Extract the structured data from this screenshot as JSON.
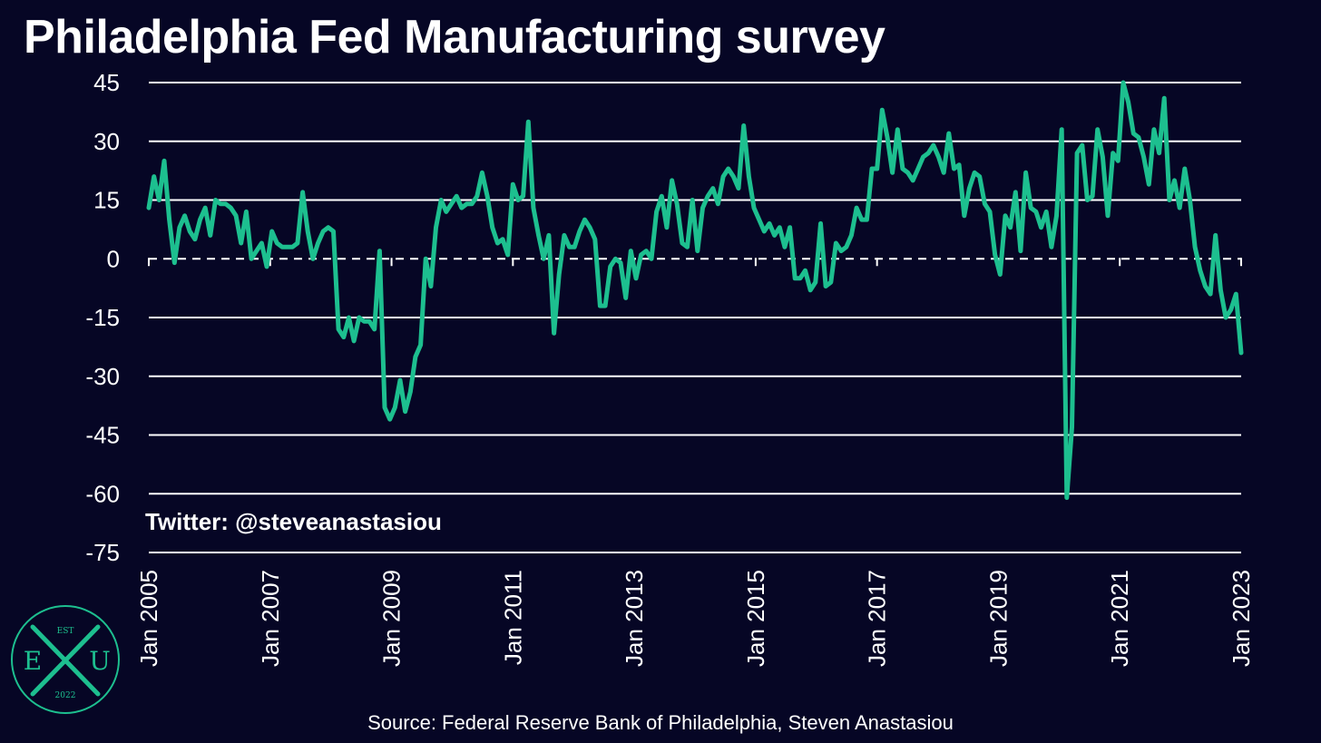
{
  "title": "Philadelphia Fed Manufacturing survey",
  "watermark": "Twitter: @steveanastasiou",
  "source": "Source: Federal Reserve Bank of Philadelphia, Steven Anastasiou",
  "logo": {
    "top": "EST",
    "left": "E",
    "right": "U",
    "bottom": "2022",
    "color": "#1dbf8f"
  },
  "colors": {
    "background": "#060625",
    "line": "#1dbf8f",
    "grid": "#ffffff",
    "text": "#ffffff"
  },
  "chart_data": {
    "type": "line",
    "title": "Philadelphia Fed Manufacturing survey",
    "xlabel": "",
    "ylabel": "",
    "x_start": "2005-01",
    "x_end": "2023-01",
    "x_ticks": [
      "Jan 2005",
      "Jan 2007",
      "Jan 2009",
      "Jan 2011",
      "Jan 2013",
      "Jan 2015",
      "Jan 2017",
      "Jan 2019",
      "Jan 2021",
      "Jan 2023"
    ],
    "y_ticks": [
      45,
      30,
      15,
      0,
      -15,
      -30,
      -45,
      -60,
      -75
    ],
    "ylim": [
      -75,
      45
    ],
    "zero_line": "dashed",
    "grid": true,
    "series": [
      {
        "color": "#1dbf8f",
        "values": [
          13,
          21,
          15,
          25,
          10,
          -1,
          8,
          11,
          7,
          5,
          10,
          13,
          6,
          15,
          14,
          14,
          13,
          11,
          4,
          12,
          0,
          2,
          4,
          -2,
          7,
          4,
          3,
          3,
          3,
          4,
          17,
          7,
          0,
          4,
          7,
          8,
          7,
          -18,
          -20,
          -15,
          -21,
          -15,
          -16,
          -16,
          -18,
          2,
          -38,
          -41,
          -38,
          -31,
          -39,
          -34,
          -25,
          -22,
          0,
          -7,
          8,
          15,
          12,
          14,
          16,
          13,
          14,
          14,
          16,
          22,
          16,
          8,
          4,
          5,
          1,
          19,
          15,
          16,
          35,
          13,
          6,
          0,
          6,
          -19,
          -4,
          6,
          3,
          3,
          7,
          10,
          8,
          5,
          -12,
          -12,
          -2,
          0,
          -1,
          -10,
          2,
          -5,
          1,
          2,
          0,
          12,
          16,
          8,
          20,
          14,
          4,
          3,
          15,
          2,
          13,
          16,
          18,
          14,
          21,
          23,
          21,
          18,
          34,
          21,
          13,
          10,
          7,
          9,
          6,
          8,
          3,
          8,
          -5,
          -5,
          -3,
          -8,
          -6,
          9,
          -7,
          -6,
          4,
          2,
          3,
          6,
          13,
          10,
          10,
          23,
          23,
          38,
          31,
          22,
          33,
          23,
          22,
          20,
          23,
          26,
          27,
          29,
          26,
          22,
          32,
          23,
          24,
          11,
          18,
          22,
          21,
          14,
          12,
          1,
          -4,
          11,
          8,
          17,
          2,
          22,
          13,
          12,
          8,
          12,
          3,
          11,
          33,
          -61,
          -43,
          27,
          29,
          15,
          16,
          33,
          26,
          11,
          27,
          25,
          45,
          40,
          32,
          31,
          26,
          19,
          33,
          27,
          41,
          15,
          20,
          13,
          23,
          15,
          3,
          -3,
          -7,
          -9,
          6,
          -8,
          -15,
          -13,
          -9,
          -24
        ]
      }
    ]
  }
}
